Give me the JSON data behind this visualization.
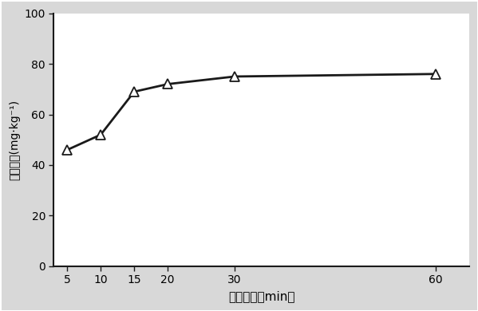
{
  "x": [
    5,
    10,
    15,
    20,
    30,
    60
  ],
  "y": [
    46,
    52,
    69,
    72,
    75,
    76
  ],
  "xlabel": "蚕馏时间（min）",
  "ylabel": "二氧化硫(mg·kg⁻¹)",
  "xlim": [
    3,
    65
  ],
  "ylim": [
    0,
    100
  ],
  "xticks": [
    5,
    10,
    15,
    20,
    30,
    60
  ],
  "yticks": [
    0,
    20,
    40,
    60,
    80,
    100
  ],
  "line_color": "#1a1a1a",
  "marker": "^",
  "marker_size": 8,
  "marker_facecolor": "white",
  "marker_edgecolor": "#1a1a1a",
  "linewidth": 2.0,
  "bg_color": "#d8d8d8",
  "plot_bg_color": "#ffffff",
  "xlabel_fontsize": 11,
  "ylabel_fontsize": 10,
  "tick_fontsize": 10
}
